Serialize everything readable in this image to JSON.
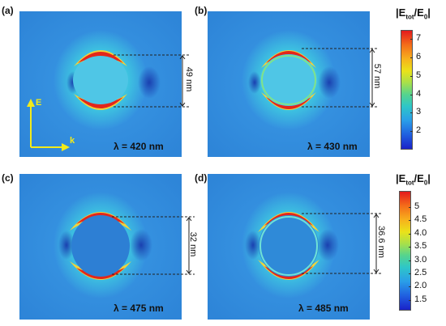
{
  "panels": [
    {
      "label": "(a)",
      "wavelength": "λ = 420 nm",
      "gap": "49 nm"
    },
    {
      "label": "(b)",
      "wavelength": "λ = 430 nm",
      "gap": "57 nm"
    },
    {
      "label": "(c)",
      "wavelength": "λ = 475 nm",
      "gap": "32 nm"
    },
    {
      "label": "(d)",
      "wavelength": "λ = 485 nm",
      "gap": "36.6 nm"
    }
  ],
  "axes": {
    "e_label": "E",
    "k_label": "k"
  },
  "colorbars": [
    {
      "title_main": "|E",
      "title_sub": "tot",
      "title_mid": "/E",
      "title_sub2": "0",
      "title_end": "|",
      "min": 1,
      "max": 7.5,
      "ticks": [
        "7",
        "6",
        "5",
        "4",
        "3",
        "2"
      ],
      "tick_values": [
        7,
        6,
        5,
        4,
        3,
        2
      ]
    },
    {
      "title_main": "|E",
      "title_sub": "tot",
      "title_mid": "/E",
      "title_sub2": "0",
      "title_end": "|",
      "min": 1.1,
      "max": 5.6,
      "ticks": [
        "5",
        "4.5",
        "4.0",
        "3.5",
        "3.0",
        "2.5",
        "2.0",
        "1.5"
      ],
      "tick_values": [
        5,
        4.5,
        4.0,
        3.5,
        3.0,
        2.5,
        2.0,
        1.5
      ]
    }
  ],
  "colors": {
    "background_field": "#2f8cdc",
    "arrow": "#f2ea1a",
    "hot": "#e4261a"
  }
}
